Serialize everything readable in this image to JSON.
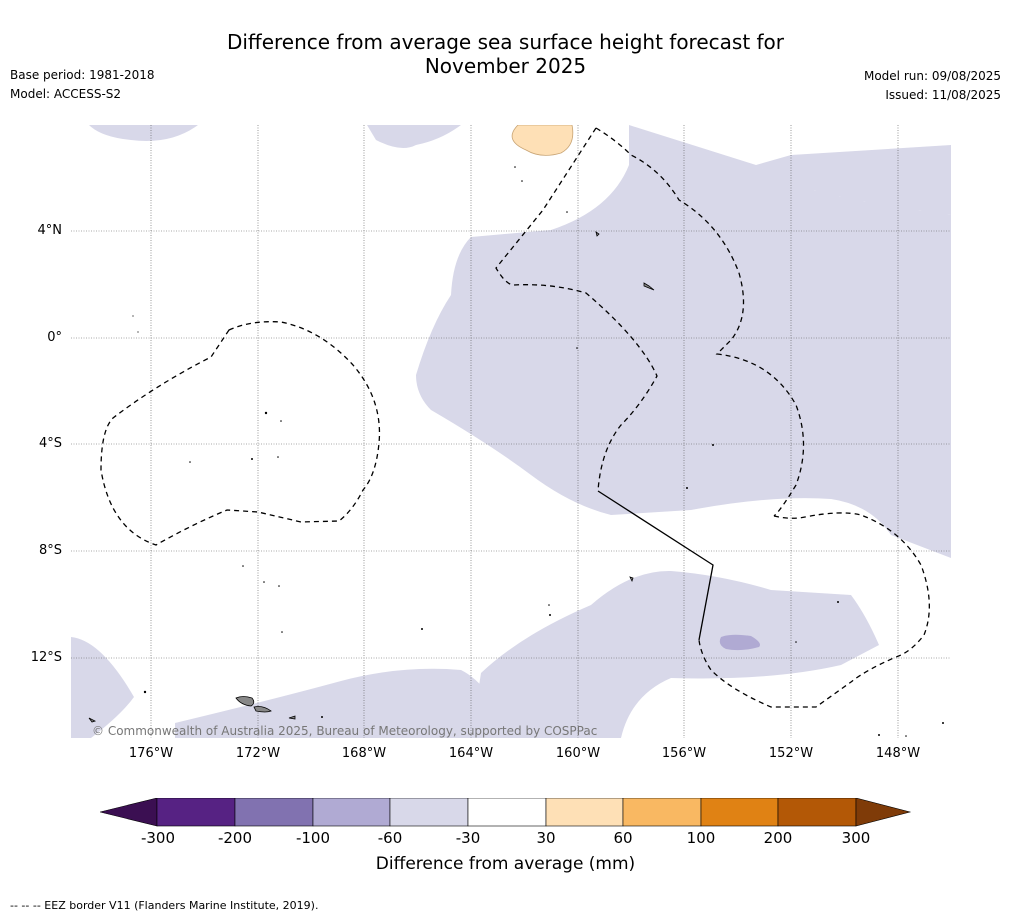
{
  "title_line1": "Difference from average sea surface height forecast for",
  "title_line2": "November 2025",
  "base_period": "Base period: 1981-2018",
  "model": "Model: ACCESS-S2",
  "model_run": "Model run: 09/08/2025",
  "issued": "Issued: 11/08/2025",
  "copyright": "© Commonwealth of Australia 2025, Bureau of Meteorology, supported by COSPPac",
  "lat_labels": [
    "4°N",
    "0°",
    "4°S",
    "8°S",
    "12°S"
  ],
  "lon_labels": [
    "176°W",
    "172°W",
    "168°W",
    "164°W",
    "160°W",
    "156°W",
    "152°W",
    "148°W"
  ],
  "colorbar": {
    "ticks": [
      "-300",
      "-200",
      "-100",
      "-60",
      "-30",
      "30",
      "60",
      "100",
      "200",
      "300"
    ],
    "colors": [
      "#3b0f52",
      "#562283",
      "#8172b0",
      "#b0aad3",
      "#d8d8e9",
      "#ffffff",
      "#fee0b6",
      "#f9b862",
      "#e08214",
      "#b35806",
      "#7f3b08"
    ],
    "label": "Difference from average (mm)"
  },
  "footer": "--  --  -- EEZ border V11 (Flanders Marine Institute, 2019)."
}
